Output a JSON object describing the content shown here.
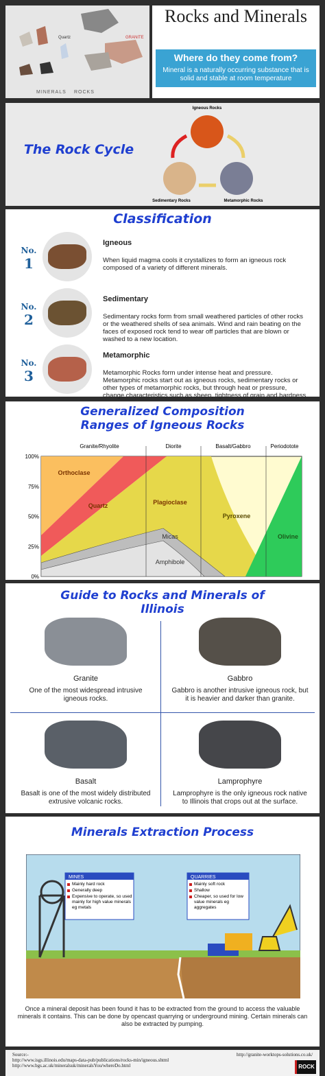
{
  "header": {
    "title": "Rocks and Minerals",
    "question": "Where do they come from?",
    "definition": "Mineral is a naturally occurring substance that is solid and stable at room temperature",
    "labels": {
      "quartz": "Quartz",
      "granite": "GRANITE",
      "minerals": "MINERALS",
      "rocks": "ROCKS"
    }
  },
  "rock_cycle": {
    "title": "The Rock Cycle",
    "nodes": [
      "Igneous Rocks",
      "Sedimentary Rocks",
      "Metamorphic Rocks"
    ]
  },
  "classification": {
    "title": "Classification",
    "items": [
      {
        "no": "No.",
        "num": "1",
        "name": "Igneous",
        "text": "When liquid magma cools it crystallizes to form an igneous rock composed of a variety of different minerals."
      },
      {
        "no": "No.",
        "num": "2",
        "name": "Sedimentary",
        "text": "Sedimentary rocks form from small weathered particles of other rocks or the weathered shells of sea animals. Wind and rain beating on the faces of exposed rock tend to wear off particles that are blown or washed to a new location."
      },
      {
        "no": "No.",
        "num": "3",
        "name": "Metamorphic",
        "text": "Metamorphic Rocks form under intense heat and pressure. Metamorphic rocks start out as igneous rocks, sedimentary rocks or other types of metamorphic rocks, but through heat or pressure, change characteristics such as sheen, tightness of grain and hardness."
      }
    ]
  },
  "composition": {
    "title_lines": [
      "Generalized Composition",
      "Ranges of Igneous Rocks"
    ],
    "columns": [
      "Granite/Rhyolite",
      "Diorite",
      "Basalt/Gabbro",
      "Periodotote"
    ],
    "yticks": [
      "100%",
      "75%",
      "50%",
      "25%",
      "0%"
    ],
    "regions": [
      "Orthoclase",
      "Quartz",
      "Plagioclase",
      "Pyroxene",
      "Micas",
      "Amphibole",
      "Olivine"
    ]
  },
  "guide": {
    "title": "Guide to Rocks and Minerals of Illinois",
    "rocks": [
      {
        "name": "Granite",
        "text": "One of the most widespread intrusive igneous rocks."
      },
      {
        "name": "Gabbro",
        "text": "Gabbro is another intrusive igneous rock, but it is heavier and darker than granite."
      },
      {
        "name": "Basalt",
        "text": "Basalt is one of the most widely distributed extrusive volcanic rocks."
      },
      {
        "name": "Lamprophyre",
        "text": "Lamprophyre is the only igneous rock native to Illinois that crops out at the surface."
      }
    ]
  },
  "extraction": {
    "title": "Minerals Extraction Process",
    "mines": {
      "heading": "MINES",
      "items": [
        "Mainly hard rock",
        "Generally deep",
        "Expensive to operate, so used mainly for high value minerals eg metals"
      ]
    },
    "quarries": {
      "heading": "QUARRIES",
      "items": [
        "Mainly soft rock",
        "Shallow",
        "Cheaper, so used for low value minerals eg aggregates"
      ]
    },
    "text": "Once a mineral deposit has been found it has to be extracted from the ground to access the valuable minerals it contains. This can be done by opencast quarrying or underground mining. Certain minerals can also be extracted by pumping."
  },
  "footer": {
    "source_label": "Source:-",
    "sources": [
      "http://www.isgs.illinois.edu/maps-data-pub/publications/rocks-min/igneous.shtml",
      "http://www.bgs.ac.uk/mineralsuk/mineralsYou/whereDo.html"
    ],
    "site": "http://granite-worktops-solutions.co.uk/",
    "logo": "ROCK"
  }
}
